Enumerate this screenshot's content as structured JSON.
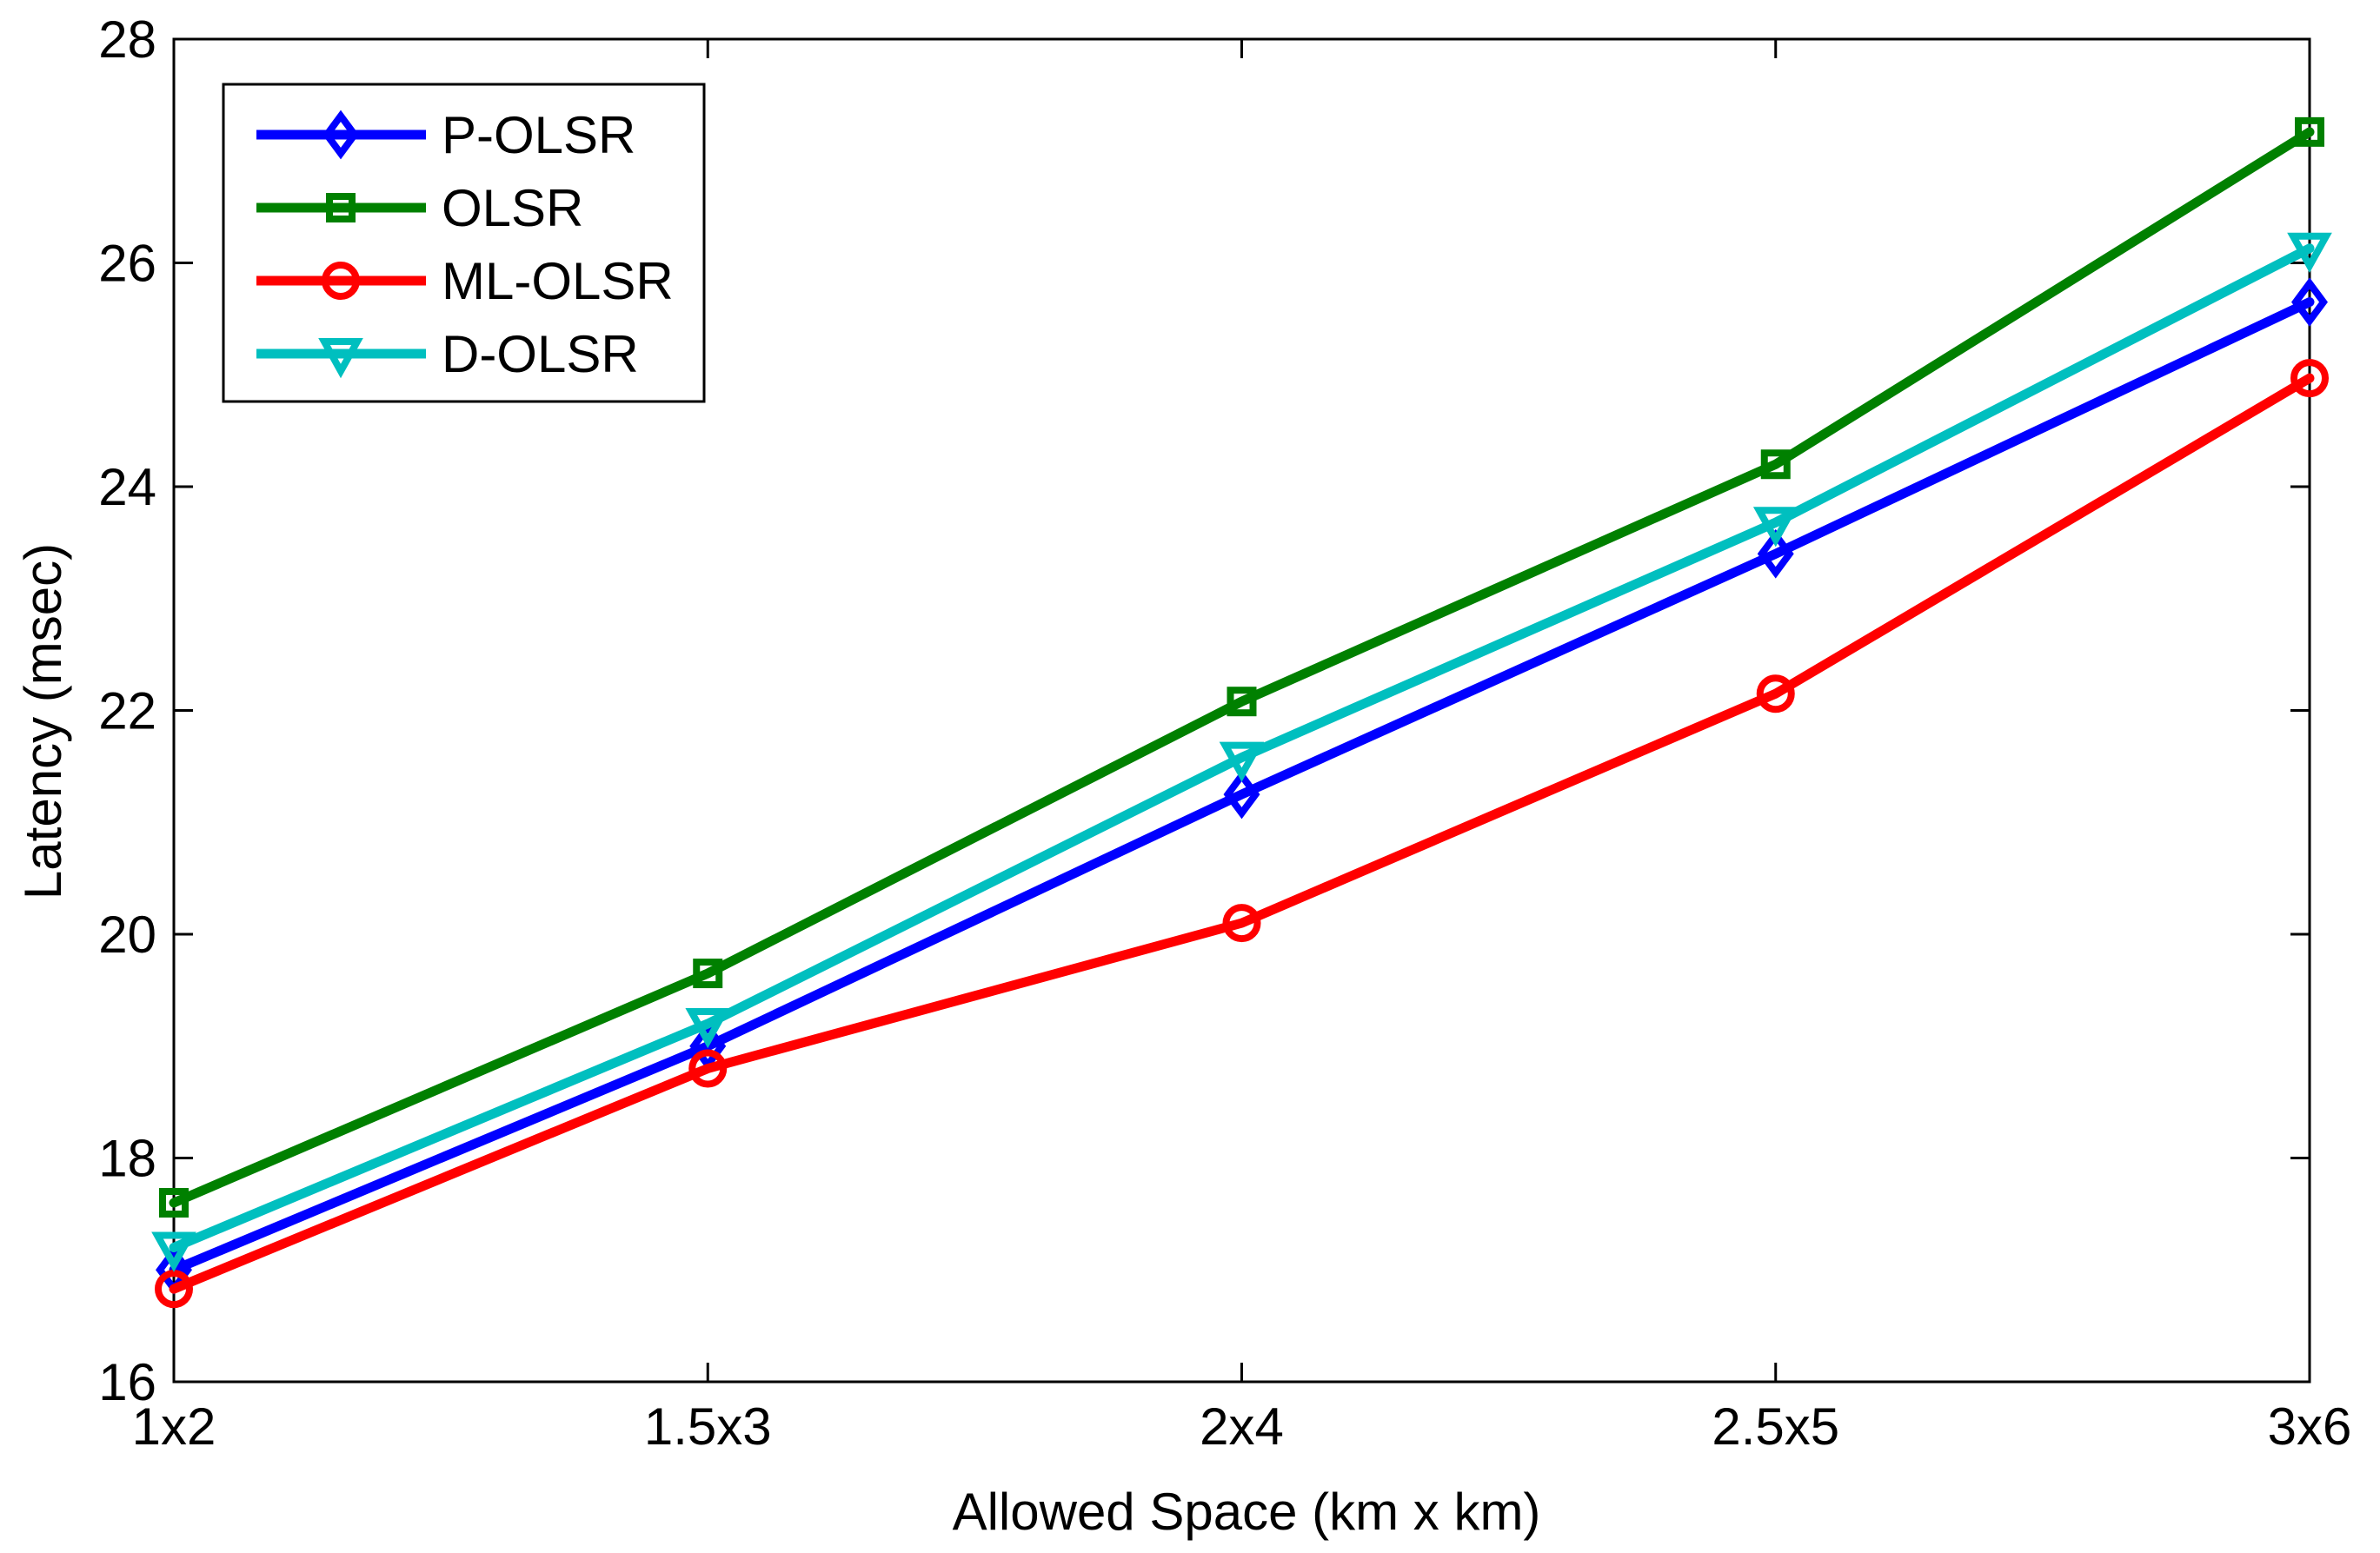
{
  "chart_data": {
    "type": "line",
    "title": "",
    "xlabel": "Allowed Space (km x km)",
    "ylabel": "Latency (msec)",
    "categories": [
      "1x2",
      "1.5x3",
      "2x4",
      "2.5x5",
      "3x6"
    ],
    "ylim": [
      16,
      28
    ],
    "yticks": [
      16,
      18,
      20,
      22,
      24,
      26,
      28
    ],
    "grid": false,
    "legend_position": "top-left",
    "series": [
      {
        "name": "P-OLSR",
        "color": "#0000ff",
        "marker": "diamond",
        "values": [
          17.0,
          19.0,
          21.25,
          23.4,
          25.65
        ]
      },
      {
        "name": "OLSR",
        "color": "#008000",
        "marker": "square",
        "values": [
          17.6,
          19.65,
          22.08,
          24.2,
          27.17
        ]
      },
      {
        "name": "ML-OLSR",
        "color": "#ff0000",
        "marker": "circle",
        "values": [
          16.83,
          18.8,
          20.1,
          22.15,
          24.97
        ]
      },
      {
        "name": "D-OLSR",
        "color": "#00bfbf",
        "marker": "triangle-down",
        "values": [
          17.2,
          19.2,
          21.58,
          23.68,
          26.13
        ]
      }
    ]
  }
}
